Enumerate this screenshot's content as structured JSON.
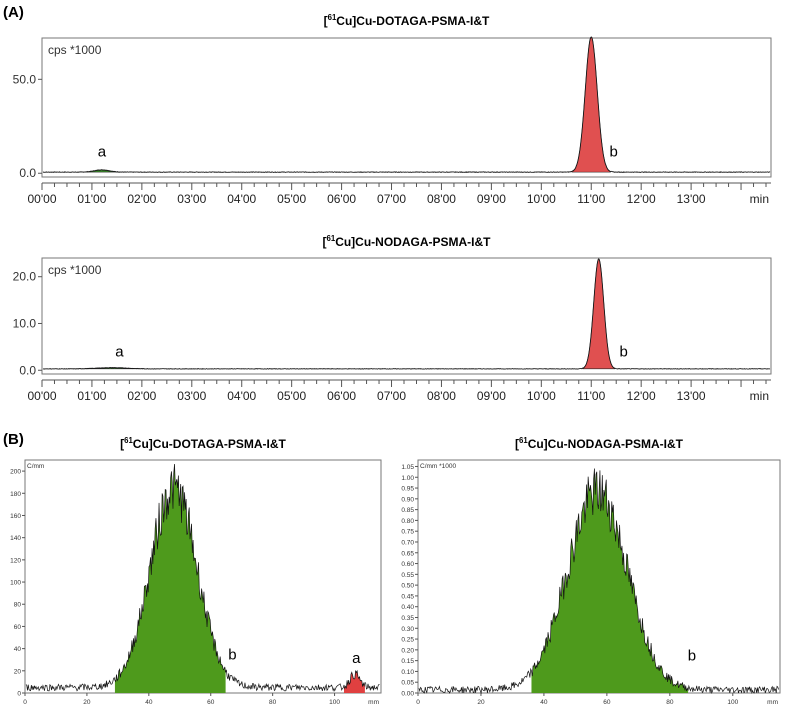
{
  "panel_labels": {
    "A": "(A)",
    "B": "(B)"
  },
  "chart_data": [
    {
      "type": "line",
      "panel": "A",
      "title_parts": {
        "pre": "[",
        "sup": "61",
        "post": "Cu]Cu-DOTAGA-PSMA-I&T"
      },
      "ylabel": "cps *1000",
      "xlabel": "min",
      "xlim": [
        0,
        14.6
      ],
      "ylim": [
        -2,
        72
      ],
      "yticks": [
        {
          "value": 0,
          "label": "0.0"
        },
        {
          "value": 50,
          "label": "50.0"
        }
      ],
      "xticks": [
        "00'00",
        "01'00",
        "02'00",
        "03'00",
        "04'00",
        "05'00",
        "06'00",
        "07'00",
        "08'00",
        "09'00",
        "10'00",
        "11'00",
        "12'00",
        "13'00"
      ],
      "peaks": [
        {
          "label": "a",
          "x": 1.2,
          "height": 1.2,
          "width": 0.15,
          "color": "#3a8a2a"
        },
        {
          "label": "b",
          "x": 11.0,
          "height": 72,
          "width": 0.12,
          "color": "#e05050"
        }
      ],
      "baseline": 0.6,
      "peak_labels": [
        {
          "text": "a",
          "x": 1.2,
          "y": 9
        },
        {
          "text": "b",
          "x": 11.45,
          "y": 9
        }
      ]
    },
    {
      "type": "line",
      "panel": "A",
      "title_parts": {
        "pre": "[",
        "sup": "61",
        "post": "Cu]Cu-NODAGA-PSMA-I&T"
      },
      "ylabel": "cps *1000",
      "xlabel": "min",
      "xlim": [
        0,
        14.6
      ],
      "ylim": [
        -0.8,
        24
      ],
      "yticks": [
        {
          "value": 0,
          "label": "0.0"
        },
        {
          "value": 10,
          "label": "10.0"
        },
        {
          "value": 20,
          "label": "20.0"
        }
      ],
      "xticks": [
        "00'00",
        "01'00",
        "02'00",
        "03'00",
        "04'00",
        "05'00",
        "06'00",
        "07'00",
        "08'00",
        "09'00",
        "10'00",
        "11'00",
        "12'00",
        "13'00"
      ],
      "peaks": [
        {
          "label": "a",
          "x": 1.4,
          "height": 0.25,
          "width": 0.3,
          "color": "#3a8a2a"
        },
        {
          "label": "b",
          "x": 11.15,
          "height": 23.5,
          "width": 0.1,
          "color": "#e05050"
        }
      ],
      "baseline": 0.3,
      "peak_labels": [
        {
          "text": "a",
          "x": 1.55,
          "y": 2.9
        },
        {
          "text": "b",
          "x": 11.65,
          "y": 2.9
        }
      ]
    },
    {
      "type": "area",
      "panel": "B",
      "title_parts": {
        "pre": "[",
        "sup": "61",
        "post": "Cu]Cu-DOTAGA-PSMA-I&T"
      },
      "ylabel": "C/mm",
      "xlabel": "mm",
      "xlim": [
        0,
        115
      ],
      "ylim": [
        0,
        210
      ],
      "yticks": [
        0,
        20,
        40,
        60,
        80,
        100,
        120,
        140,
        160,
        180,
        200
      ],
      "xticks": [
        0,
        20,
        40,
        60,
        80,
        100
      ],
      "peaks": [
        {
          "label": "b",
          "center": 48,
          "sigma": 7.5,
          "height": 180,
          "range": [
            29,
            65
          ],
          "color": "#4e9a1c"
        },
        {
          "label": "a",
          "center": 106.5,
          "sigma": 1.6,
          "height": 12,
          "range": [
            103,
            110
          ],
          "color": "#e04040"
        }
      ],
      "baseline": 5,
      "peak_labels": [
        {
          "text": "b",
          "x": 67,
          "y": 30
        },
        {
          "text": "a",
          "x": 107,
          "y": 27
        }
      ]
    },
    {
      "type": "area",
      "panel": "B",
      "title_parts": {
        "pre": "[",
        "sup": "61",
        "post": "Cu]Cu-NODAGA-PSMA-I&T"
      },
      "ylabel": "C/mm *1000",
      "xlabel": "mm",
      "xlim": [
        0,
        115
      ],
      "ylim": [
        0,
        1.08
      ],
      "yticks": [
        0,
        0.05,
        0.1,
        0.15,
        0.2,
        0.25,
        0.3,
        0.35,
        0.4,
        0.45,
        0.5,
        0.55,
        0.6,
        0.65,
        0.7,
        0.75,
        0.8,
        0.85,
        0.9,
        0.95,
        1.0,
        1.05
      ],
      "ytick_labels": [
        "0.00",
        "0.05",
        "0.10",
        "0.15",
        "0.20",
        "0.25",
        "0.30",
        "0.35",
        "0.40",
        "0.45",
        "0.50",
        "0.55",
        "0.60",
        "0.65",
        "0.70",
        "0.75",
        "0.80",
        "0.85",
        "0.90",
        "0.95",
        "1.00",
        "1.05"
      ],
      "xticks": [
        0,
        20,
        40,
        60,
        80,
        100
      ],
      "peaks": [
        {
          "label": "b",
          "center": 57,
          "sigma": 9.5,
          "height": 0.92,
          "range": [
            36,
            86
          ],
          "color": "#4e9a1c"
        }
      ],
      "baseline": 0.015,
      "peak_labels": [
        {
          "text": "b",
          "x": 87,
          "y": 0.15
        }
      ]
    }
  ]
}
